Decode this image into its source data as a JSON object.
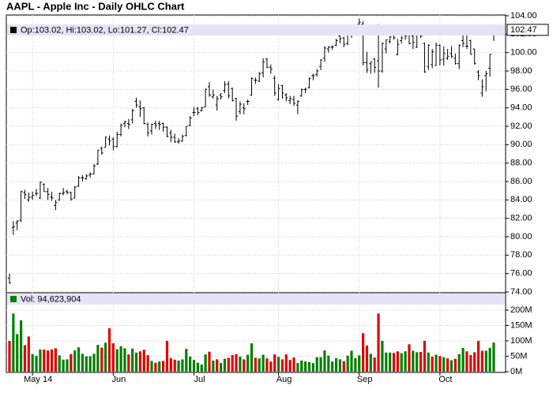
{
  "chart_data": [
    {
      "type": "ohlc",
      "title": "AAPL - Apple Inc - Daily OHLC Chart",
      "legend": "Op:103.02, Hi:103.02, Lo:101.27, Cl:102.47",
      "color": "#000000",
      "grid": true,
      "categories": [
        null,
        null,
        null,
        null,
        null,
        null,
        "May 14",
        null,
        null,
        null,
        null,
        null,
        null,
        null,
        null,
        null,
        null,
        null,
        null,
        null,
        null,
        null,
        null,
        null,
        null,
        null,
        null,
        "Jun",
        null,
        null,
        null,
        null,
        null,
        null,
        null,
        null,
        null,
        null,
        null,
        null,
        null,
        null,
        null,
        null,
        null,
        null,
        null,
        null,
        "Jul",
        null,
        null,
        null,
        null,
        null,
        null,
        null,
        null,
        null,
        null,
        null,
        null,
        null,
        null,
        null,
        null,
        null,
        null,
        null,
        null,
        null,
        "Aug",
        null,
        null,
        null,
        null,
        null,
        null,
        null,
        null,
        null,
        null,
        null,
        null,
        null,
        null,
        null,
        null,
        null,
        null,
        null,
        null,
        "Sep",
        null,
        null,
        null,
        null,
        null,
        null,
        null,
        null,
        null,
        null,
        null,
        null,
        null,
        null,
        null,
        null,
        null,
        null,
        null,
        null,
        "Oct",
        null,
        null,
        null,
        null,
        null,
        null,
        null,
        null,
        null,
        null,
        null,
        null,
        null,
        null
      ],
      "open": [
        75.5,
        81.0,
        81.5,
        81.8,
        84.8,
        84.0,
        84.3,
        84.7,
        84.2,
        85.7,
        84.9,
        84.3,
        83.4,
        84.0,
        84.7,
        84.9,
        84.8,
        84.2,
        85.5,
        86.4,
        86.3,
        86.7,
        86.8,
        87.9,
        89.6,
        89.7,
        90.6,
        90.6,
        89.8,
        91.1,
        92.3,
        92.3,
        92.7,
        94.7,
        94.1,
        94.0,
        92.2,
        91.5,
        92.3,
        92.3,
        92.3,
        91.9,
        91.3,
        90.8,
        90.3,
        90.4,
        91.0,
        92.1,
        93.5,
        93.9,
        93.7,
        94.1,
        96.3,
        95.2,
        94.3,
        95.4,
        95.9,
        96.6,
        96.1,
        95.0,
        93.6,
        94.0,
        94.7,
        95.4,
        97.0,
        96.9,
        97.8,
        99.3,
        98.4,
        97.2,
        94.9,
        96.4,
        95.4,
        94.8,
        94.9,
        94.3,
        95.3,
        96.0,
        96.2,
        97.5,
        97.6,
        98.5,
        99.4,
        100.4,
        100.6,
        100.8,
        101.8,
        101.6,
        101.0,
        102.1,
        102.9,
        103.1,
        103.1,
        98.9,
        98.8,
        99.3,
        99.1,
        98.0,
        100.4,
        101.2,
        102.8,
        99.8,
        101.3,
        101.9,
        102.3,
        101.8,
        100.6,
        102.2,
        101.0,
        98.5,
        98.7,
        98.6,
        100.8,
        99.3,
        99.4,
        99.9,
        99.4,
        98.8,
        101.3,
        100.7,
        101.3,
        100.4,
        97.9,
        95.6,
        97.5,
        98.3,
        103.02
      ],
      "high": [
        76.0,
        81.7,
        81.8,
        85.0,
        85.1,
        84.8,
        84.9,
        85.2,
        86.0,
        85.8,
        85.3,
        84.9,
        84.0,
        84.8,
        85.3,
        85.1,
        84.9,
        85.5,
        86.6,
        86.7,
        86.8,
        87.0,
        87.9,
        89.4,
        89.8,
        90.9,
        91.0,
        90.8,
        91.4,
        92.3,
        92.6,
        92.8,
        93.9,
        95.1,
        94.8,
        94.1,
        92.4,
        92.3,
        92.6,
        92.6,
        92.4,
        92.0,
        91.6,
        91.2,
        90.7,
        91.1,
        92.0,
        93.1,
        94.1,
        94.1,
        94.1,
        96.1,
        96.8,
        96.0,
        95.3,
        95.6,
        96.9,
        96.9,
        96.2,
        95.1,
        94.7,
        94.5,
        94.9,
        97.3,
        97.3,
        97.9,
        99.4,
        99.4,
        98.7,
        97.5,
        96.6,
        96.5,
        95.6,
        95.3,
        95.3,
        94.8,
        96.1,
        96.2,
        97.3,
        97.7,
        98.2,
        99.3,
        100.7,
        100.7,
        100.8,
        101.5,
        102.2,
        101.7,
        102.2,
        102.4,
        102.9,
        103.7,
        103.4,
        100.1,
        99.0,
        99.4,
        103.1,
        101.1,
        101.4,
        101.8,
        102.9,
        101.5,
        101.8,
        102.3,
        102.4,
        102.1,
        102.8,
        102.9,
        101.1,
        100.9,
        100.4,
        101.1,
        100.9,
        100.7,
        100.4,
        100.7,
        99.9,
        100.9,
        102.1,
        102.3,
        101.4,
        100.4,
        98.1,
        97.1,
        98.0,
        99.8,
        103.02
      ],
      "low": [
        74.9,
        80.2,
        80.7,
        81.6,
        84.1,
        83.8,
        84.0,
        84.4,
        84.1,
        84.9,
        84.0,
        83.9,
        82.9,
        83.9,
        84.5,
        84.6,
        83.9,
        84.2,
        85.4,
        86.0,
        86.2,
        86.4,
        86.8,
        87.8,
        88.9,
        89.7,
        89.9,
        89.4,
        89.7,
        90.9,
        91.9,
        91.7,
        92.3,
        94.0,
        93.0,
        92.2,
        90.9,
        91.1,
        91.7,
        91.6,
        91.4,
        90.8,
        90.3,
        90.2,
        90.1,
        90.3,
        90.9,
        92.0,
        93.1,
        93.2,
        93.6,
        94.1,
        95.2,
        95.0,
        93.7,
        94.9,
        95.6,
        95.0,
        94.7,
        92.6,
        93.3,
        93.3,
        94.3,
        95.3,
        96.6,
        96.8,
        97.3,
        98.3,
        97.7,
        95.3,
        94.8,
        95.0,
        94.7,
        94.4,
        94.2,
        93.3,
        95.2,
        95.6,
        96.1,
        97.0,
        97.4,
        98.1,
        99.0,
        100.0,
        100.3,
        100.7,
        101.0,
        100.6,
        100.8,
        101.6,
        102.2,
        102.9,
        98.6,
        97.8,
        97.7,
        97.8,
        96.2,
        97.8,
        99.9,
        101.0,
        101.4,
        99.7,
        101.0,
        101.4,
        100.9,
        100.4,
        100.5,
        101.6,
        97.8,
        98.1,
        98.3,
        98.6,
        98.6,
        98.6,
        99.2,
        99.4,
        98.7,
        98.2,
        100.6,
        100.4,
        99.8,
        98.7,
        97.0,
        95.2,
        95.8,
        97.4,
        101.27
      ],
      "close": [
        75.0,
        81.1,
        81.7,
        84.9,
        84.6,
        84.3,
        84.5,
        84.7,
        85.9,
        84.9,
        84.6,
        84.2,
        83.7,
        84.7,
        84.8,
        84.8,
        84.1,
        85.4,
        86.4,
        86.4,
        86.6,
        86.8,
        87.7,
        89.4,
        89.1,
        90.8,
        90.4,
        89.8,
        91.1,
        92.1,
        92.5,
        92.2,
        93.7,
        94.3,
        93.9,
        92.3,
        91.3,
        92.2,
        92.1,
        92.2,
        91.9,
        90.9,
        90.8,
        90.3,
        90.4,
        90.9,
        92.0,
        92.9,
        93.5,
        93.5,
        94.0,
        96.0,
        95.4,
        95.4,
        95.0,
        95.2,
        96.5,
        95.3,
        94.8,
        93.1,
        94.4,
        93.9,
        94.7,
        97.2,
        97.0,
        97.7,
        99.0,
        98.4,
        98.2,
        95.6,
        96.1,
        95.6,
        95.1,
        95.0,
        94.5,
        94.7,
        96.0,
        96.0,
        97.2,
        97.5,
        98.0,
        99.2,
        100.5,
        100.6,
        100.6,
        101.3,
        101.5,
        100.9,
        102.1,
        102.3,
        102.5,
        103.3,
        98.9,
        98.1,
        99.0,
        98.4,
        98.0,
        101.0,
        101.4,
        101.7,
        101.6,
        100.9,
        101.6,
        101.8,
        101.0,
        101.1,
        102.6,
        101.8,
        97.9,
        100.8,
        100.1,
        100.8,
        99.2,
        99.9,
        99.6,
        99.6,
        98.8,
        100.8,
        101.0,
        100.7,
        99.8,
        98.8,
        97.5,
        96.3,
        97.7,
        99.8,
        102.47
      ],
      "ylim": [
        74,
        104
      ],
      "yticks": [
        {
          "value": 74,
          "label": "74.00"
        },
        {
          "value": 76,
          "label": "76.00"
        },
        {
          "value": 78,
          "label": "78.00"
        },
        {
          "value": 80,
          "label": "80.00"
        },
        {
          "value": 82,
          "label": "82.00"
        },
        {
          "value": 84,
          "label": "84.00"
        },
        {
          "value": 86,
          "label": "86.00"
        },
        {
          "value": 88,
          "label": "88.00"
        },
        {
          "value": 90,
          "label": "90.00"
        },
        {
          "value": 92,
          "label": "92.00"
        },
        {
          "value": 94,
          "label": "94.00"
        },
        {
          "value": 96,
          "label": "96.00"
        },
        {
          "value": 98,
          "label": "98.00"
        },
        {
          "value": 100,
          "label": "100.00"
        },
        {
          "value": 102,
          "label": "102.00"
        },
        {
          "value": 104,
          "label": "104.00"
        }
      ]
    },
    {
      "type": "bar",
      "legend": "Vol: 94,623,904",
      "up_color": "#008000",
      "down_color": "#e00000",
      "grid": true,
      "values": [
        100,
        189,
        122,
        167,
        86,
        114,
        57,
        52,
        72,
        72,
        69,
        72,
        76,
        53,
        39,
        40,
        57,
        69,
        79,
        58,
        50,
        50,
        58,
        87,
        78,
        94,
        141,
        92,
        73,
        83,
        76,
        56,
        75,
        62,
        66,
        71,
        54,
        35,
        29,
        33,
        35,
        100,
        44,
        39,
        36,
        40,
        74,
        49,
        38,
        29,
        23,
        56,
        65,
        36,
        40,
        28,
        42,
        45,
        54,
        57,
        49,
        40,
        55,
        92,
        45,
        43,
        55,
        43,
        33,
        56,
        48,
        40,
        56,
        38,
        46,
        28,
        36,
        33,
        31,
        28,
        47,
        47,
        69,
        52,
        33,
        44,
        40,
        34,
        52,
        68,
        44,
        53,
        125,
        85,
        58,
        46,
        189,
        100,
        62,
        62,
        61,
        66,
        60,
        66,
        89,
        68,
        63,
        64,
        100,
        62,
        49,
        55,
        51,
        47,
        43,
        37,
        42,
        57,
        77,
        66,
        54,
        63,
        100,
        68,
        68,
        77,
        94.623904
      ],
      "ylim": [
        0,
        250
      ],
      "yticks": [
        {
          "value": 0,
          "label": "0M"
        },
        {
          "value": 50,
          "label": "50M"
        },
        {
          "value": 100,
          "label": "100M"
        },
        {
          "value": 150,
          "label": "150M"
        },
        {
          "value": 200,
          "label": "200M"
        }
      ]
    }
  ]
}
